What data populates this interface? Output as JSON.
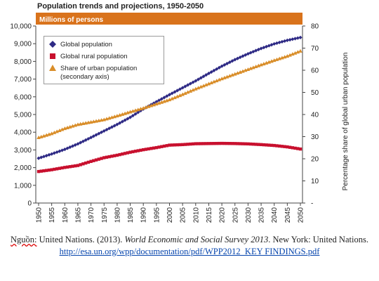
{
  "chart_data": {
    "type": "line",
    "title": "Population trends and projections, 1950-2050",
    "subtitle": "Millions of persons",
    "xlabel": "",
    "ylabel": "",
    "y2label": "Percentage share of global urban population",
    "x": [
      1950,
      1955,
      1960,
      1965,
      1970,
      1975,
      1980,
      1985,
      1990,
      1995,
      2000,
      2005,
      2010,
      2015,
      2020,
      2025,
      2030,
      2035,
      2040,
      2045,
      2050
    ],
    "xticks": [
      "1950",
      "1955",
      "1960",
      "1965",
      "1970",
      "1975",
      "1980",
      "1985",
      "1990",
      "1995",
      "2000",
      "2005",
      "2010",
      "2015",
      "2020",
      "2025",
      "2030",
      "2035",
      "2040",
      "2045",
      "2050"
    ],
    "ylim": [
      0,
      10000
    ],
    "yticks": [
      "0",
      "1,000",
      "2,000",
      "3,000",
      "4,000",
      "5,000",
      "6,000",
      "7,000",
      "8,000",
      "9,000",
      "10,000"
    ],
    "y2lim": [
      0,
      80
    ],
    "y2ticks": [
      "-",
      "10",
      "20",
      "30",
      "40",
      "50",
      "60",
      "70",
      "80"
    ],
    "grid": false,
    "legend_position": "top-left",
    "series": [
      {
        "name": "Global population",
        "axis": "left",
        "marker": "diamond",
        "color": "#2e2a85",
        "values": [
          2530,
          2770,
          3030,
          3340,
          3700,
          4070,
          4440,
          4840,
          5310,
          5720,
          6120,
          6510,
          6900,
          7320,
          7730,
          8100,
          8430,
          8730,
          8990,
          9190,
          9350
        ]
      },
      {
        "name": "Global rural population",
        "axis": "left",
        "marker": "square",
        "color": "#c8102e",
        "values": [
          1780,
          1880,
          2010,
          2120,
          2350,
          2560,
          2700,
          2870,
          3010,
          3130,
          3270,
          3300,
          3350,
          3360,
          3370,
          3360,
          3340,
          3300,
          3250,
          3170,
          3050
        ]
      },
      {
        "name": "Share of urban population (secondary axis)",
        "axis": "right",
        "marker": "triangle",
        "color": "#d98e2a",
        "values": [
          29.6,
          31.4,
          33.7,
          35.5,
          36.6,
          37.7,
          39.4,
          41.2,
          42.9,
          44.8,
          46.7,
          49.1,
          51.6,
          53.9,
          56.2,
          58.3,
          60.4,
          62.5,
          64.5,
          66.4,
          68.7
        ]
      }
    ]
  },
  "legend": {
    "global_population": "Global population",
    "rural_population": "Global rural population",
    "urban_share_line1": "Share of urban population",
    "urban_share_line2": "(secondary axis)"
  },
  "source": {
    "label": "Nguồn:",
    "text1": " United Nations. (2013). ",
    "publication": "World Economic and Social Survey 2013",
    "text2": ". New York: United Nations. ",
    "link": "http://esa.un.org/wpp/documentation/pdf/WPP2012_KEY FINDINGS.pdf"
  },
  "colors": {
    "band": "#d9731c",
    "global": "#2e2a85",
    "rural": "#c8102e",
    "urban": "#d98e2a"
  }
}
